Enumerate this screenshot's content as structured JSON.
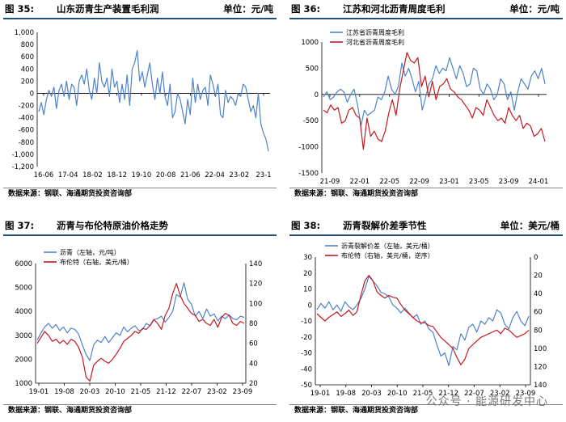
{
  "colors": {
    "blue": "#4e83c9",
    "red": "#c3191f",
    "header_line": "#1f4e79",
    "axis": "#000000"
  },
  "source_text": "数据来源：钢联、海通期货投资咨询部",
  "watermark": "公众号 · 能源研发中心",
  "chart_data": [
    {
      "id": "fig35",
      "number": "图 35:",
      "title": "山东沥青生产装置毛利润",
      "unit": "单位：元/吨",
      "type": "line",
      "yticks": [
        "1,000",
        "800",
        "600",
        "400",
        "200",
        "0",
        "-200",
        "-400",
        "-600",
        "-800",
        "-1,000",
        "-1,200"
      ],
      "ylim": [
        -1200,
        1000
      ],
      "xticks": [
        "16-06",
        "17-04",
        "18-02",
        "18-12",
        "19-10",
        "20-08",
        "21-06",
        "22-04",
        "23-02",
        "23-1"
      ],
      "series": [
        {
          "name": "山东沥青生产装置毛利润",
          "color": "#4e83c9",
          "values": [
            -300,
            -150,
            -350,
            -100,
            50,
            -50,
            100,
            -250,
            50,
            150,
            -50,
            200,
            -100,
            150,
            100,
            -200,
            200,
            300,
            150,
            400,
            50,
            -100,
            250,
            0,
            500,
            200,
            100,
            250,
            -50,
            400,
            100,
            200,
            -150,
            150,
            -100,
            300,
            -200,
            400,
            500,
            700,
            200,
            350,
            100,
            300,
            500,
            150,
            -100,
            250,
            0,
            350,
            -50,
            -200,
            150,
            -400,
            -300,
            0,
            -100,
            -300,
            -500,
            -100,
            -350,
            250,
            -150,
            150,
            -100,
            50,
            100,
            -200,
            300,
            150,
            -50,
            150,
            -350,
            -400,
            50,
            -150,
            -50,
            -100,
            -200,
            0,
            -50,
            150,
            100,
            -100,
            -300,
            -200,
            -400,
            0,
            -500,
            -650,
            -750,
            -950
          ]
        }
      ]
    },
    {
      "id": "fig36",
      "number": "图 36:",
      "title": "江苏和河北沥青周度毛利",
      "unit": "单位：元/吨",
      "type": "line",
      "yticks": [
        "1000",
        "500",
        "0",
        "-500",
        "-1000",
        "-1500"
      ],
      "ylim": [
        -1500,
        1000
      ],
      "xticks": [
        "21-09",
        "22-01",
        "22-05",
        "22-09",
        "23-01",
        "23-05",
        "23-09",
        "24-01"
      ],
      "series": [
        {
          "name": "江苏省沥青周度毛利",
          "color": "#4e83c9",
          "values": [
            -50,
            50,
            -100,
            -50,
            50,
            100,
            50,
            -150,
            0,
            100,
            -200,
            -600,
            -300,
            -400,
            -350,
            -300,
            -50,
            -100,
            50,
            350,
            100,
            0,
            150,
            600,
            350,
            500,
            300,
            50,
            250,
            -300,
            -50,
            200,
            300,
            550,
            400,
            500,
            450,
            700,
            500,
            300,
            550,
            400,
            150,
            200,
            500,
            450,
            100,
            0,
            200,
            100,
            -100,
            0,
            300,
            200,
            -100,
            50,
            -300,
            50,
            300,
            200,
            100,
            350,
            450,
            300,
            500,
            200
          ]
        },
        {
          "name": "河北省沥青周度毛利",
          "color": "#c3191f",
          "values": [
            -300,
            -350,
            -200,
            -300,
            -250,
            -550,
            -500,
            -300,
            -250,
            -400,
            -450,
            -1050,
            -450,
            -800,
            -700,
            -850,
            -900,
            -700,
            -350,
            -100,
            -400,
            100,
            450,
            800,
            650,
            600,
            700,
            150,
            350,
            -50,
            250,
            -100,
            150,
            200,
            300,
            100,
            50,
            -50,
            -100,
            -200,
            -300,
            -450,
            -250,
            -300,
            -400,
            -100,
            -250,
            -400,
            -500,
            -450,
            -550,
            -250,
            -400,
            -500,
            -400,
            -650,
            -550,
            -600,
            -800,
            -750,
            -650,
            -900
          ]
        }
      ]
    },
    {
      "id": "fig37",
      "number": "图 37:",
      "title": "沥青与布伦特原油价格走势",
      "unit": "",
      "type": "line",
      "yticks_left": [
        "6000",
        "5000",
        "4000",
        "3000",
        "2000",
        "1000"
      ],
      "yticks_right": [
        "140",
        "120",
        "100",
        "80",
        "60",
        "40",
        "20"
      ],
      "ylim_left": [
        1000,
        6000
      ],
      "ylim_right": [
        20,
        140
      ],
      "xticks": [
        "19-01",
        "19-08",
        "20-03",
        "20-10",
        "21-05",
        "21-12",
        "22-07",
        "23-02",
        "23-09"
      ],
      "series": [
        {
          "name": "沥青（左轴，元/吨）",
          "axis": "left",
          "color": "#4e83c9",
          "values": [
            2800,
            3100,
            3350,
            3500,
            3300,
            3450,
            3200,
            3350,
            3100,
            3300,
            3250,
            3050,
            2600,
            2200,
            1950,
            2600,
            2800,
            2700,
            2950,
            2700,
            2900,
            3100,
            3000,
            3350,
            3150,
            3300,
            3400,
            3200,
            3250,
            3500,
            3400,
            3650,
            3700,
            3800,
            3550,
            3750,
            4000,
            4700,
            4600,
            5200,
            4500,
            4300,
            3800,
            4000,
            3700,
            4100,
            3800,
            3900,
            3600,
            3800,
            3700,
            3850,
            3700,
            3650,
            3800,
            3750
          ]
        },
        {
          "name": "布伦特（右轴，美元/桶）",
          "axis": "right",
          "color": "#c3191f",
          "values": [
            60,
            66,
            72,
            68,
            62,
            64,
            60,
            63,
            59,
            64,
            62,
            56,
            46,
            26,
            22,
            38,
            42,
            45,
            42,
            40,
            44,
            49,
            55,
            62,
            65,
            68,
            72,
            70,
            75,
            74,
            78,
            84,
            80,
            74,
            88,
            95,
            110,
            120,
            108,
            100,
            95,
            90,
            88,
            82,
            84,
            80,
            78,
            84,
            76,
            86,
            90,
            88,
            80,
            78,
            82,
            80
          ]
        }
      ]
    },
    {
      "id": "fig38",
      "number": "图 38:",
      "title": "沥青裂解价差季节性",
      "unit": "单位：美元/桶",
      "type": "line",
      "yticks_left": [
        "30",
        "20",
        "10",
        "0",
        "-10",
        "-20",
        "-30",
        "-40",
        "-50"
      ],
      "yticks_right": [
        "0",
        "20",
        "40",
        "60",
        "80",
        "100",
        "120",
        "140"
      ],
      "ylim_left": [
        -50,
        30
      ],
      "ylim_right": [
        0,
        140
      ],
      "xticks": [
        "19-01",
        "19-08",
        "20-03",
        "20-10",
        "21-05",
        "21-12",
        "22-07",
        "23-02",
        "23-09"
      ],
      "series": [
        {
          "name": "沥青裂解价差（左轴，美元/桶）",
          "axis": "left",
          "color": "#4e83c9",
          "values": [
            -3,
            1,
            -2,
            2,
            -3,
            0,
            -4,
            2,
            -1,
            -3,
            0,
            4,
            10,
            18,
            15,
            12,
            8,
            7,
            5,
            0,
            -2,
            -5,
            -2,
            -5,
            -8,
            -6,
            -12,
            -10,
            -15,
            -17,
            -25,
            -32,
            -30,
            -38,
            -26,
            -28,
            -18,
            -22,
            -14,
            -12,
            -17,
            -10,
            -12,
            -8,
            -10,
            -3,
            -5,
            -12,
            -15,
            -8,
            -4,
            -10,
            -13,
            -7
          ]
        },
        {
          "name": "布伦特（右轴，美元/桶，逆序）",
          "axis": "right",
          "color": "#c3191f",
          "values": [
            62,
            66,
            70,
            66,
            63,
            60,
            65,
            62,
            58,
            64,
            60,
            42,
            26,
            20,
            26,
            38,
            42,
            45,
            42,
            44,
            45,
            52,
            58,
            62,
            66,
            70,
            72,
            72,
            75,
            76,
            82,
            88,
            92,
            96,
            100,
            110,
            118,
            112,
            100,
            96,
            92,
            88,
            86,
            84,
            82,
            80,
            84,
            78,
            80,
            84,
            88,
            86,
            84,
            80
          ]
        }
      ]
    }
  ]
}
